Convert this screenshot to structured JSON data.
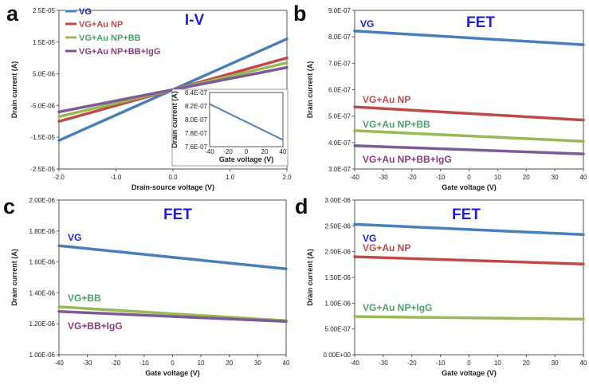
{
  "colors": {
    "blue": "#4a7ebb",
    "red": "#be4b48",
    "green": "#98b954",
    "purple": "#7e5a96",
    "title_blue": "#1f1fd0",
    "gtext": "#4aa36a",
    "ptext": "#8a3e7e"
  },
  "chart_data": [
    {
      "type": "line",
      "panel_label": "a",
      "title": "I-V",
      "xlabel": "Drain-source voltage (V)",
      "ylabel": "Drain current (A)",
      "xlim": [
        -2.0,
        2.0
      ],
      "ylim": [
        -2.5e-05,
        2.5e-05
      ],
      "x_ticks": [
        "-2.0",
        "-1.0",
        "0.0",
        "1.0",
        "2.0"
      ],
      "y_ticks": [
        "2.5E-05",
        "1.5E-05",
        "5.0E-06",
        "-5.0E-06",
        "-1.5E-05",
        "-2.5E-05"
      ],
      "legend": [
        "VG",
        "VG+Au NP",
        "VG+Au NP+BB",
        "VG+Au NP+BB+IgG"
      ],
      "series": [
        {
          "name": "VG",
          "color": "blue",
          "x": [
            -2.0,
            2.0
          ],
          "y": [
            -1.6e-05,
            1.6e-05
          ]
        },
        {
          "name": "VG+Au NP",
          "color": "red",
          "x": [
            -2.0,
            2.0
          ],
          "y": [
            -1e-05,
            1e-05
          ]
        },
        {
          "name": "VG+Au NP+BB",
          "color": "green",
          "x": [
            -2.0,
            2.0
          ],
          "y": [
            -8.5e-06,
            8.5e-06
          ]
        },
        {
          "name": "VG+Au NP+BB+IgG",
          "color": "purple",
          "x": [
            -2.0,
            2.0
          ],
          "y": [
            -7e-06,
            7e-06
          ]
        }
      ],
      "inset": {
        "xlabel": "Gate voltage (V)",
        "ylabel": "Drain current (A)",
        "xlim": [
          -40,
          40
        ],
        "ylim": [
          7.6e-07,
          8.4e-07
        ],
        "x_ticks": [
          "-40",
          "-20",
          "0",
          "20",
          "40"
        ],
        "y_ticks": [
          "8.4E-07",
          "8.2E-07",
          "8.0E-07",
          "7.8E-07",
          "7.6E-07"
        ],
        "series": [
          {
            "name": "VG",
            "color": "blue",
            "x": [
              -40,
              40
            ],
            "y": [
              8.23e-07,
              7.7e-07
            ]
          }
        ]
      }
    },
    {
      "type": "line",
      "panel_label": "b",
      "title": "FET",
      "xlabel": "Gate voltage (V)",
      "ylabel": "Drain current (A)",
      "xlim": [
        -40,
        40
      ],
      "ylim": [
        3e-07,
        9e-07
      ],
      "x_ticks": [
        "-40",
        "-30",
        "-20",
        "-10",
        "0",
        "10",
        "20",
        "30",
        "40"
      ],
      "y_ticks": [
        "9.0E-07",
        "8.0E-07",
        "7.0E-07",
        "6.0E-07",
        "5.0E-07",
        "4.0E-07",
        "3.0E-07"
      ],
      "series": [
        {
          "name": "VG",
          "color": "blue",
          "x": [
            -40,
            40
          ],
          "y": [
            8.22e-07,
            7.7e-07
          ]
        },
        {
          "name": "VG+Au NP",
          "color": "red",
          "x": [
            -40,
            40
          ],
          "y": [
            5.35e-07,
            4.85e-07
          ]
        },
        {
          "name": "VG+Au NP+BB",
          "color": "green",
          "x": [
            -40,
            40
          ],
          "y": [
            4.45e-07,
            4.05e-07
          ]
        },
        {
          "name": "VG+Au NP+BB+IgG",
          "color": "purple",
          "x": [
            -40,
            40
          ],
          "y": [
            3.88e-07,
            3.57e-07
          ]
        }
      ]
    },
    {
      "type": "line",
      "panel_label": "c",
      "title": "FET",
      "xlabel": "Gate voltage (V)",
      "ylabel": "Drain current (A)",
      "xlim": [
        -40,
        40
      ],
      "ylim": [
        1e-06,
        2e-06
      ],
      "x_ticks": [
        "-40",
        "-30",
        "-20",
        "-10",
        "0",
        "10",
        "20",
        "30",
        "40"
      ],
      "y_ticks": [
        "2.00E-06",
        "1.80E-06",
        "1.60E-06",
        "1.40E-06",
        "1.20E-06",
        "1.00E-06"
      ],
      "series": [
        {
          "name": "VG",
          "color": "blue",
          "x": [
            -40,
            40
          ],
          "y": [
            1.705e-06,
            1.555e-06
          ]
        },
        {
          "name": "VG+BB",
          "color": "green",
          "x": [
            -40,
            40
          ],
          "y": [
            1.31e-06,
            1.22e-06
          ]
        },
        {
          "name": "VG+BB+IgG",
          "color": "purple",
          "x": [
            -40,
            40
          ],
          "y": [
            1.28e-06,
            1.215e-06
          ]
        }
      ]
    },
    {
      "type": "line",
      "panel_label": "d",
      "title": "FET",
      "xlabel": "Gate voltage (V)",
      "ylabel": "Drain current (A)",
      "xlim": [
        -40,
        40
      ],
      "ylim": [
        0.0,
        3e-06
      ],
      "x_ticks": [
        "-40",
        "-30",
        "-20",
        "-10",
        "0",
        "10",
        "20",
        "30",
        "40"
      ],
      "y_ticks": [
        "3.00E-06",
        "2.50E-06",
        "2.00E-06",
        "1.50E-06",
        "1.00E-06",
        "5.00E-07",
        "0.00E+00"
      ],
      "series": [
        {
          "name": "VG",
          "color": "blue",
          "x": [
            -40,
            40
          ],
          "y": [
            2.53e-06,
            2.33e-06
          ]
        },
        {
          "name": "VG+Au NP",
          "color": "red",
          "x": [
            -40,
            40
          ],
          "y": [
            1.9e-06,
            1.76e-06
          ]
        },
        {
          "name": "VG+Au NP+IgG",
          "color": "green",
          "x": [
            -40,
            40
          ],
          "y": [
            7.4e-07,
            6.9e-07
          ]
        }
      ]
    }
  ]
}
